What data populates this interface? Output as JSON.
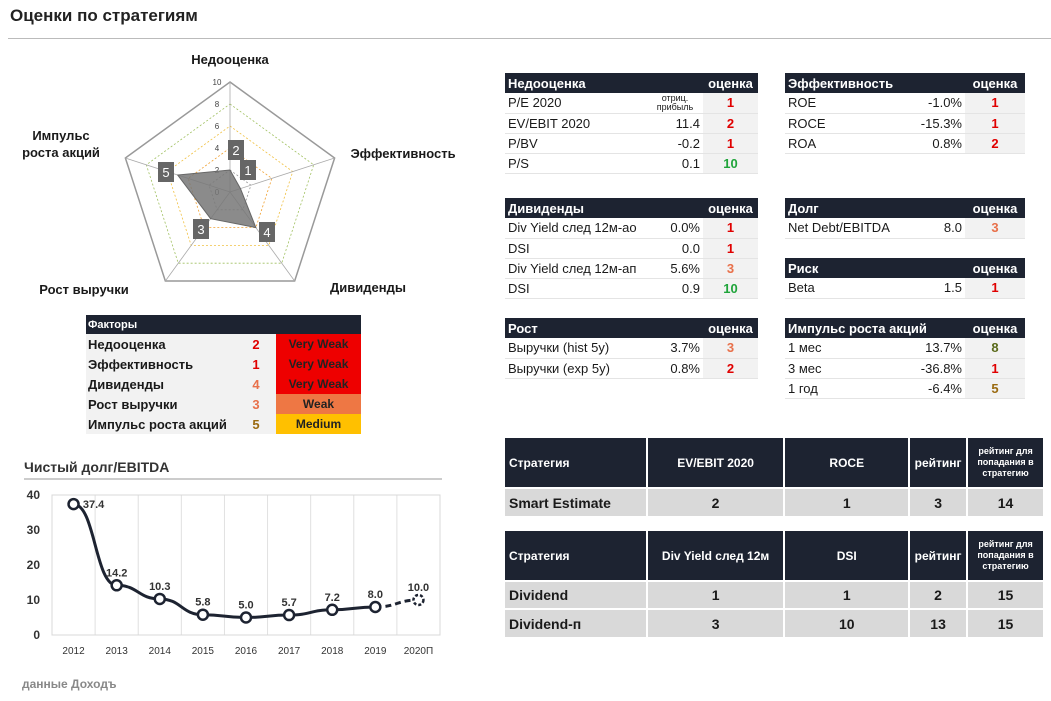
{
  "page_title": "Оценки по стратегиям",
  "footer_source": "данные Доходъ",
  "radar": {
    "axes": [
      {
        "label": "Недооценка",
        "value": 2
      },
      {
        "label": "Эффективность",
        "value": 1
      },
      {
        "label": "Дивиденды",
        "value": 4
      },
      {
        "label": "Рост выручки",
        "value": 3
      },
      {
        "label": "Импульс\nроста акций",
        "value": 5
      }
    ],
    "ticks": [
      "10",
      "8",
      "6",
      "4",
      "2",
      "0"
    ]
  },
  "factors": {
    "header": "Факторы",
    "rows": [
      {
        "label": "Недооценка",
        "value": "2",
        "category": "Very Weak",
        "color": "#ee0000",
        "value_color": "#e00000"
      },
      {
        "label": "Эффективность",
        "value": "1",
        "category": "Very Weak",
        "color": "#ee0000",
        "value_color": "#e00000"
      },
      {
        "label": "Дивиденды",
        "value": "4",
        "category": "Very Weak",
        "color": "#ee0000",
        "value_color": "#e8704a"
      },
      {
        "label": "Рост выручки",
        "value": "3",
        "category": "Weak",
        "color": "#ee7744",
        "value_color": "#e8704a"
      },
      {
        "label": "Импульс роста акций",
        "value": "5",
        "category": "Medium",
        "color": "#ffc000",
        "value_color": "#9a6a10"
      }
    ]
  },
  "tables": {
    "nedootsenka": {
      "title": "Недооценка",
      "score_hdr": "оценка",
      "rows": [
        {
          "name": "P/E 2020",
          "value": "отриц.\nприбыль",
          "score": "1",
          "cls": "red",
          "small": true
        },
        {
          "name": "EV/EBIT 2020",
          "value": "11.4",
          "score": "2",
          "cls": "red"
        },
        {
          "name": "P/BV",
          "value": "-0.2",
          "score": "1",
          "cls": "red"
        },
        {
          "name": "P/S",
          "value": "0.1",
          "score": "10",
          "cls": "green"
        }
      ]
    },
    "effektivnost": {
      "title": "Эффективность",
      "score_hdr": "оценка",
      "rows": [
        {
          "name": "ROE",
          "value": "-1.0%",
          "score": "1",
          "cls": "red"
        },
        {
          "name": "ROCE",
          "value": "-15.3%",
          "score": "1",
          "cls": "red"
        },
        {
          "name": "ROA",
          "value": "0.8%",
          "score": "2",
          "cls": "red"
        }
      ]
    },
    "dividendy": {
      "title": "Дивиденды",
      "score_hdr": "оценка",
      "rows": [
        {
          "name": "Div Yield след 12м-ао",
          "value": "0.0%",
          "score": "1",
          "cls": "red"
        },
        {
          "name": "DSI",
          "value": "0.0",
          "score": "1",
          "cls": "red"
        },
        {
          "name": "Div Yield след 12м-ап",
          "value": "5.6%",
          "score": "3",
          "cls": "orange"
        },
        {
          "name": "DSI",
          "value": "0.9",
          "score": "10",
          "cls": "green"
        }
      ]
    },
    "dolg": {
      "title": "Долг",
      "score_hdr": "оценка",
      "rows": [
        {
          "name": "Net Debt/EBITDA",
          "value": "8.0",
          "score": "3",
          "cls": "orange"
        }
      ]
    },
    "risk": {
      "title": "Риск",
      "score_hdr": "оценка",
      "rows": [
        {
          "name": "Beta",
          "value": "1.5",
          "score": "1",
          "cls": "red"
        }
      ]
    },
    "rost": {
      "title": "Рост",
      "score_hdr": "оценка",
      "rows": [
        {
          "name": "Выручки (hist 5y)",
          "value": "3.7%",
          "score": "3",
          "cls": "orange"
        },
        {
          "name": "Выручки (exp 5y)",
          "value": "0.8%",
          "score": "2",
          "cls": "red"
        }
      ]
    },
    "impuls": {
      "title": "Импульс роста акций",
      "score_hdr": "оценка",
      "rows": [
        {
          "name": "1 мес",
          "value": "13.7%",
          "score": "8",
          "cls": "olive"
        },
        {
          "name": "3 мес",
          "value": "-36.8%",
          "score": "1",
          "cls": "red"
        },
        {
          "name": "1 год",
          "value": "-6.4%",
          "score": "5",
          "cls": "brown"
        }
      ]
    }
  },
  "strategy1": {
    "headers": [
      "Стратегия",
      "EV/EBIT 2020",
      "ROCE",
      "рейтинг",
      "рейтинг для попадания в стратегию"
    ],
    "rows": [
      [
        "Smart Estimate",
        "2",
        "1",
        "3",
        "14"
      ]
    ]
  },
  "strategy2": {
    "headers": [
      "Стратегия",
      "Div Yield след 12м",
      "DSI",
      "рейтинг",
      "рейтинг для попадания в стратегию"
    ],
    "rows": [
      [
        "Dividend",
        "1",
        "1",
        "2",
        "15"
      ],
      [
        "Dividend-п",
        "3",
        "10",
        "13",
        "15"
      ]
    ]
  },
  "chart_data": {
    "type": "line",
    "title": "Чистый долг/EBITDA",
    "categories": [
      "2012",
      "2013",
      "2014",
      "2015",
      "2016",
      "2017",
      "2018",
      "2019",
      "2020П"
    ],
    "values": [
      37.4,
      14.2,
      10.3,
      5.8,
      5.0,
      5.7,
      7.2,
      8.0,
      10.0
    ],
    "data_labels": [
      "37.4",
      "14.2",
      "10.3",
      "5.8",
      "5.0",
      "5.7",
      "7.2",
      "8.0",
      "10.0"
    ],
    "forecast_from_index": 7,
    "ylim": [
      0,
      40
    ],
    "yticks": [
      "0",
      "10",
      "20",
      "30",
      "40"
    ],
    "grid": true,
    "line_color": "#1d2331"
  }
}
